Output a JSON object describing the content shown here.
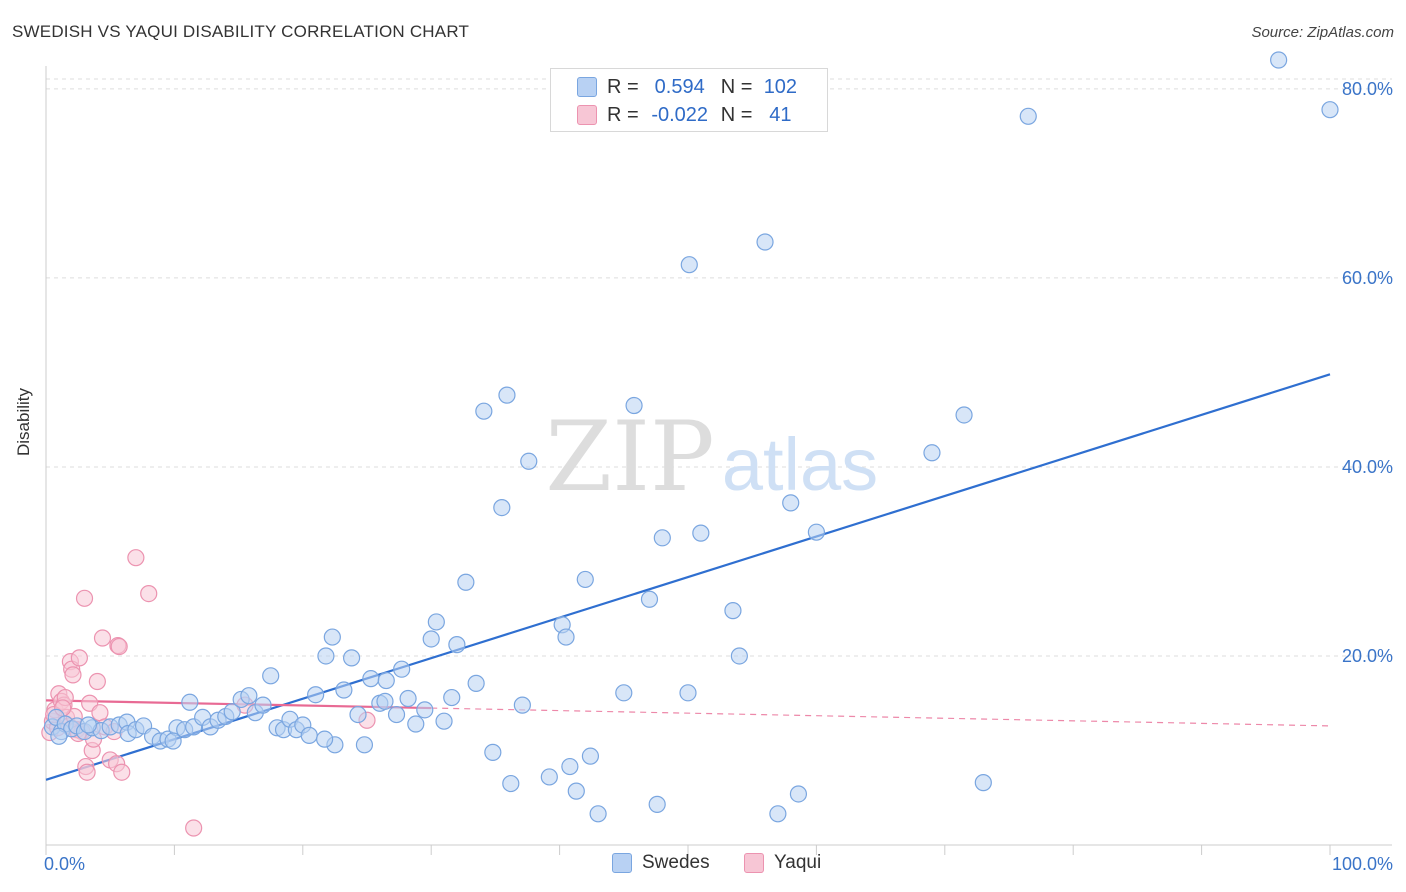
{
  "title": "SWEDISH VS YAQUI DISABILITY CORRELATION CHART",
  "source": "Source: ZipAtlas.com",
  "watermark": {
    "zip": "ZIP",
    "atlas": "atlas"
  },
  "legend": {
    "r_label": "R =",
    "n_label": "N =",
    "swedes": {
      "r": "0.594",
      "n": "102"
    },
    "yaqui": {
      "r": "-0.022",
      "n": "41"
    }
  },
  "bottom_legend": {
    "swedes": "Swedes",
    "yaqui": "Yaqui"
  },
  "colors": {
    "swedes_fill": "#b8d1f3",
    "swedes_stroke": "#7aa6e0",
    "swedes_line": "#2f6fd0",
    "yaqui_fill": "#f7c6d5",
    "yaqui_stroke": "#ec93b0",
    "yaqui_line": "#e86a94",
    "axis_text": "#3a74c8",
    "grid": "#dedede"
  },
  "chart_data": {
    "type": "scatter",
    "title": "SWEDISH VS YAQUI DISABILITY CORRELATION CHART",
    "xlabel": "",
    "ylabel": "Disability",
    "xlim": [
      0,
      100
    ],
    "ylim": [
      0,
      82
    ],
    "x_tick_labels": [
      "0.0%",
      "100.0%"
    ],
    "y_ticks": [
      20,
      40,
      60,
      80
    ],
    "y_tick_labels": [
      "20.0%",
      "40.0%",
      "60.0%",
      "80.0%"
    ],
    "series": [
      {
        "name": "Swedes",
        "r": 0.594,
        "n": 102,
        "trend": {
          "x": [
            0,
            100
          ],
          "y": [
            6.9,
            49.8
          ],
          "dashed_from": null
        },
        "points": [
          [
            0.5,
            12.5
          ],
          [
            0.8,
            13.5
          ],
          [
            1.2,
            12.0
          ],
          [
            1.5,
            12.8
          ],
          [
            2.0,
            12.3
          ],
          [
            2.4,
            12.6
          ],
          [
            3.0,
            12.0
          ],
          [
            3.6,
            12.4
          ],
          [
            4.3,
            12.1
          ],
          [
            5.0,
            12.5
          ],
          [
            5.7,
            12.7
          ],
          [
            6.3,
            13.0
          ],
          [
            6.4,
            11.8
          ],
          [
            7.0,
            12.2
          ],
          [
            7.6,
            12.6
          ],
          [
            8.3,
            11.5
          ],
          [
            8.9,
            11.0
          ],
          [
            9.5,
            11.2
          ],
          [
            10.2,
            12.4
          ],
          [
            10.8,
            12.2
          ],
          [
            11.2,
            15.1
          ],
          [
            11.5,
            12.5
          ],
          [
            12.2,
            13.5
          ],
          [
            12.8,
            12.5
          ],
          [
            13.4,
            13.2
          ],
          [
            14.0,
            13.6
          ],
          [
            14.5,
            14.1
          ],
          [
            15.2,
            15.4
          ],
          [
            15.8,
            15.8
          ],
          [
            16.3,
            14.0
          ],
          [
            16.9,
            14.8
          ],
          [
            17.5,
            17.9
          ],
          [
            18.0,
            12.4
          ],
          [
            18.5,
            12.2
          ],
          [
            19.0,
            13.3
          ],
          [
            19.5,
            12.2
          ],
          [
            20.0,
            12.7
          ],
          [
            20.5,
            11.6
          ],
          [
            21.0,
            15.9
          ],
          [
            21.8,
            20.0
          ],
          [
            22.3,
            22.0
          ],
          [
            22.5,
            10.6
          ],
          [
            23.2,
            16.4
          ],
          [
            23.8,
            19.8
          ],
          [
            24.3,
            13.8
          ],
          [
            24.8,
            10.6
          ],
          [
            25.3,
            17.6
          ],
          [
            26.0,
            15.0
          ],
          [
            26.5,
            17.4
          ],
          [
            27.3,
            13.8
          ],
          [
            27.7,
            18.6
          ],
          [
            28.2,
            15.5
          ],
          [
            28.8,
            12.8
          ],
          [
            29.5,
            14.3
          ],
          [
            30.0,
            21.8
          ],
          [
            30.4,
            23.6
          ],
          [
            31.0,
            13.1
          ],
          [
            31.6,
            15.6
          ],
          [
            32.0,
            21.2
          ],
          [
            32.7,
            27.8
          ],
          [
            33.5,
            17.1
          ],
          [
            34.1,
            45.9
          ],
          [
            34.8,
            9.8
          ],
          [
            35.5,
            35.7
          ],
          [
            35.9,
            47.6
          ],
          [
            36.2,
            6.5
          ],
          [
            37.1,
            14.8
          ],
          [
            37.6,
            40.6
          ],
          [
            39.2,
            7.2
          ],
          [
            40.2,
            23.3
          ],
          [
            40.5,
            22.0
          ],
          [
            40.8,
            8.3
          ],
          [
            41.3,
            5.7
          ],
          [
            42.0,
            28.1
          ],
          [
            42.4,
            9.4
          ],
          [
            43.0,
            3.3
          ],
          [
            45.0,
            16.1
          ],
          [
            45.8,
            46.5
          ],
          [
            47.0,
            26.0
          ],
          [
            47.6,
            4.3
          ],
          [
            48.0,
            32.5
          ],
          [
            50.0,
            16.1
          ],
          [
            50.1,
            61.4
          ],
          [
            51.0,
            33.0
          ],
          [
            53.5,
            24.8
          ],
          [
            54.0,
            20.0
          ],
          [
            56.0,
            63.8
          ],
          [
            57.0,
            3.3
          ],
          [
            58.0,
            36.2
          ],
          [
            58.6,
            5.4
          ],
          [
            60.0,
            33.1
          ],
          [
            69.0,
            41.5
          ],
          [
            71.5,
            45.5
          ],
          [
            73.0,
            6.6
          ],
          [
            76.5,
            77.1
          ],
          [
            96.0,
            85.0
          ],
          [
            100.0,
            77.8
          ],
          [
            1.0,
            11.5
          ],
          [
            3.3,
            12.7
          ],
          [
            9.9,
            11.0
          ],
          [
            21.7,
            11.2
          ],
          [
            26.4,
            15.2
          ]
        ]
      },
      {
        "name": "Yaqui",
        "r": -0.022,
        "n": 41,
        "trend": {
          "x": [
            0,
            100
          ],
          "y": [
            15.3,
            12.6
          ],
          "dashed_from": 30
        },
        "points": [
          [
            0.3,
            11.9
          ],
          [
            0.5,
            13.1
          ],
          [
            0.7,
            14.3
          ],
          [
            0.9,
            12.4
          ],
          [
            1.0,
            16.0
          ],
          [
            1.2,
            15.2
          ],
          [
            1.4,
            14.8
          ],
          [
            1.5,
            15.6
          ],
          [
            1.6,
            13.5
          ],
          [
            1.8,
            12.6
          ],
          [
            1.9,
            19.4
          ],
          [
            2.0,
            18.6
          ],
          [
            2.1,
            18.0
          ],
          [
            2.2,
            13.6
          ],
          [
            2.4,
            12.2
          ],
          [
            2.6,
            19.8
          ],
          [
            2.8,
            12.0
          ],
          [
            3.0,
            26.1
          ],
          [
            3.1,
            8.3
          ],
          [
            3.2,
            7.7
          ],
          [
            3.4,
            15.0
          ],
          [
            3.6,
            10.0
          ],
          [
            3.7,
            11.2
          ],
          [
            4.0,
            17.3
          ],
          [
            4.2,
            14.0
          ],
          [
            4.4,
            21.9
          ],
          [
            4.6,
            12.5
          ],
          [
            5.0,
            9.0
          ],
          [
            5.3,
            12.0
          ],
          [
            5.5,
            8.6
          ],
          [
            5.6,
            21.1
          ],
          [
            5.7,
            21.0
          ],
          [
            5.9,
            7.7
          ],
          [
            7.0,
            30.4
          ],
          [
            8.0,
            26.6
          ],
          [
            11.5,
            1.8
          ],
          [
            15.5,
            14.8
          ],
          [
            25.0,
            13.2
          ],
          [
            0.6,
            13.8
          ],
          [
            1.3,
            14.5
          ],
          [
            2.5,
            11.8
          ]
        ]
      }
    ]
  }
}
